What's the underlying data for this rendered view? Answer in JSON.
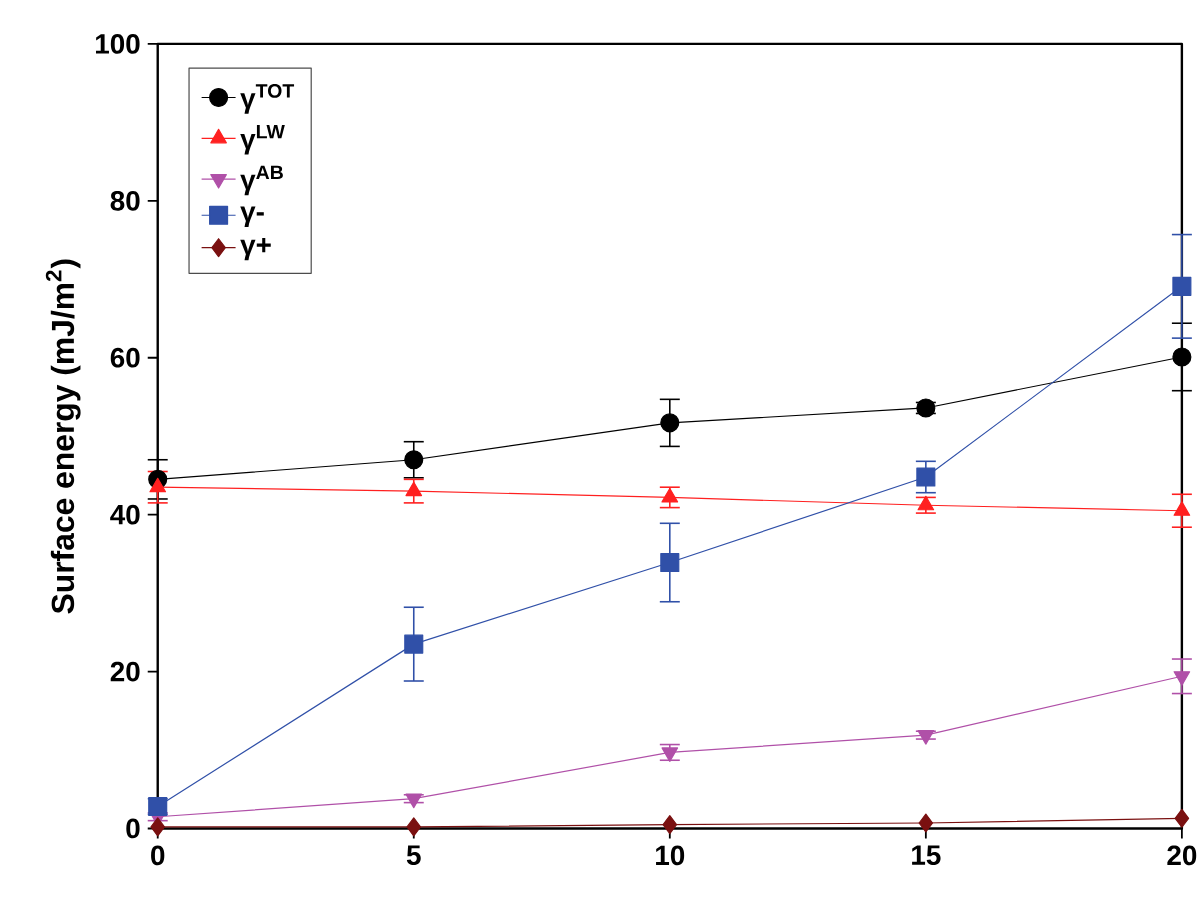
{
  "chart_data": {
    "type": "line",
    "ylabel": "Surface energy (mJ/m$^{2}$)",
    "x": [
      0,
      5,
      10,
      15,
      20
    ],
    "xlim": [
      0,
      20
    ],
    "xticks": [
      0,
      5,
      10,
      15,
      20
    ],
    "ylim": [
      0,
      100
    ],
    "yticks": [
      0,
      20,
      40,
      60,
      80,
      100
    ],
    "grid": false,
    "legend": "top left",
    "line_style": "solid",
    "series": [
      {
        "name": "γ$^{TOT}$",
        "color": "#000000",
        "marker": "circle",
        "values": [
          44.5,
          47,
          51.7,
          53.6,
          60.1
        ],
        "errors": [
          2.5,
          2.3,
          3,
          0.7,
          4.3
        ]
      },
      {
        "name": "γ$^{LW}$",
        "color": "#ff2020",
        "marker": "triangle",
        "values": [
          43.5,
          43,
          42.2,
          41.2,
          40.5
        ],
        "errors": [
          2,
          1.5,
          1.3,
          1,
          2.1
        ]
      },
      {
        "name": "γ$^{AB}$",
        "color": "#b050a8",
        "marker": "triangle-down",
        "values": [
          1.5,
          3.8,
          9.7,
          11.9,
          19.4
        ],
        "errors": [
          0.5,
          0.5,
          1,
          0.5,
          2.2
        ]
      },
      {
        "name": "γ-",
        "color": "#3050a8",
        "marker": "square",
        "values": [
          2.8,
          23.5,
          33.9,
          44.8,
          69.1
        ],
        "errors": [
          1,
          4.7,
          5,
          2,
          6.6
        ]
      },
      {
        "name": "γ+",
        "color": "#7a1010",
        "marker": "diamond",
        "values": [
          0.2,
          0.2,
          0.5,
          0.7,
          1.3
        ],
        "errors": [
          null,
          null,
          null,
          null,
          null
        ]
      }
    ]
  }
}
